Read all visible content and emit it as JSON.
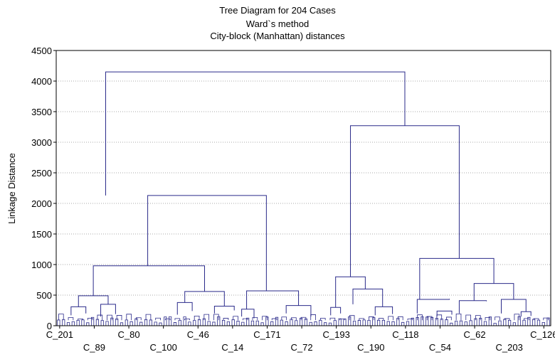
{
  "chart_data": {
    "type": "dendrogram",
    "title": "Tree Diagram for 204 Cases",
    "subtitle": "Ward`s method",
    "subtitle2": "City-block (Manhattan) distances",
    "ylabel": "Linkage Distance",
    "ylim": [
      0,
      4500
    ],
    "yticks": [
      0,
      500,
      1000,
      1500,
      2000,
      2500,
      3000,
      3500,
      4000,
      4500
    ],
    "grid": true,
    "leaf_labels": [
      {
        "label": "C_201",
        "row": 1
      },
      {
        "label": "C_89",
        "row": 2
      },
      {
        "label": "C_80",
        "row": 1
      },
      {
        "label": "C_100",
        "row": 2
      },
      {
        "label": "C_46",
        "row": 1
      },
      {
        "label": "C_14",
        "row": 2
      },
      {
        "label": "C_171",
        "row": 1
      },
      {
        "label": "C_72",
        "row": 2
      },
      {
        "label": "C_193",
        "row": 1
      },
      {
        "label": "C_190",
        "row": 2
      },
      {
        "label": "C_118",
        "row": 1
      },
      {
        "label": "C_54",
        "row": 2
      },
      {
        "label": "C_62",
        "row": 1
      },
      {
        "label": "C_203",
        "row": 2
      },
      {
        "label": "C_126",
        "row": 1
      }
    ],
    "merges": [
      {
        "height": 4150,
        "left": [
          0.1,
          2130
        ],
        "right": [
          0.705,
          3270
        ]
      },
      {
        "height": 3270,
        "left": [
          0.595,
          800
        ],
        "right": [
          0.815,
          1100
        ]
      },
      {
        "height": 2130,
        "left": [
          0.185,
          980
        ],
        "right": [
          0.425,
          570
        ]
      },
      {
        "height": 1100,
        "left": [
          0.735,
          430
        ],
        "right": [
          0.885,
          690
        ]
      },
      {
        "height": 980,
        "left": [
          0.075,
          490
        ],
        "right": [
          0.3,
          560
        ]
      },
      {
        "height": 800,
        "left": [
          0.565,
          300
        ],
        "right": [
          0.625,
          600
        ]
      },
      {
        "height": 690,
        "left": [
          0.845,
          410
        ],
        "right": [
          0.925,
          430
        ]
      },
      {
        "height": 600,
        "left": [
          0.6,
          350
        ],
        "right": [
          0.66,
          310
        ]
      },
      {
        "height": 570,
        "left": [
          0.385,
          270
        ],
        "right": [
          0.49,
          330
        ]
      },
      {
        "height": 560,
        "left": [
          0.26,
          380
        ],
        "right": [
          0.34,
          320
        ]
      },
      {
        "height": 490,
        "left": [
          0.045,
          310
        ],
        "right": [
          0.105,
          350
        ]
      },
      {
        "height": 430,
        "left": [
          0.73,
          200
        ],
        "right": [
          0.795,
          440
        ]
      },
      {
        "height": 430,
        "left": [
          0.9,
          200
        ],
        "right": [
          0.95,
          230
        ]
      },
      {
        "height": 410,
        "left": [
          0.815,
          200
        ],
        "right": [
          0.87,
          400
        ]
      },
      {
        "height": 380,
        "left": [
          0.245,
          180
        ],
        "right": [
          0.275,
          240
        ]
      },
      {
        "height": 350,
        "left": [
          0.09,
          150
        ],
        "right": [
          0.12,
          190
        ]
      },
      {
        "height": 330,
        "left": [
          0.465,
          200
        ],
        "right": [
          0.515,
          150
        ]
      },
      {
        "height": 320,
        "left": [
          0.32,
          200
        ],
        "right": [
          0.36,
          250
        ]
      },
      {
        "height": 310,
        "left": [
          0.03,
          170
        ],
        "right": [
          0.06,
          200
        ]
      },
      {
        "height": 310,
        "left": [
          0.645,
          170
        ],
        "right": [
          0.68,
          190
        ]
      },
      {
        "height": 300,
        "left": [
          0.555,
          170
        ],
        "right": [
          0.575,
          200
        ]
      },
      {
        "height": 270,
        "left": [
          0.375,
          150
        ],
        "right": [
          0.4,
          120
        ]
      },
      {
        "height": 240,
        "left": [
          0.77,
          150
        ],
        "right": [
          0.8,
          180
        ]
      },
      {
        "height": 230,
        "left": [
          0.94,
          150
        ],
        "right": [
          0.96,
          160
        ]
      }
    ]
  }
}
